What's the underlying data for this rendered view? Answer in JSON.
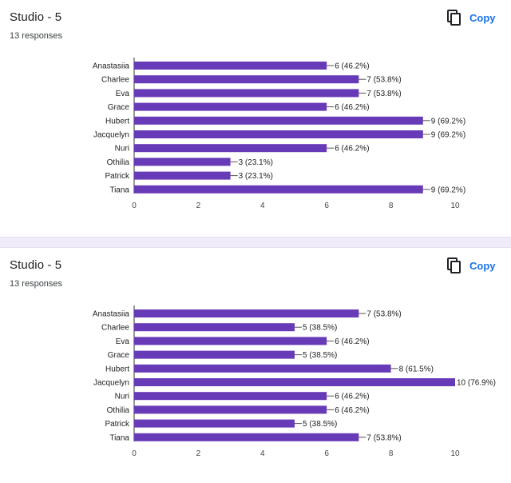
{
  "cards": [
    {
      "title": "Studio - 5",
      "responses": "13 responses",
      "copy_label": "Copy"
    },
    {
      "title": "Studio - 5",
      "responses": "13 responses",
      "copy_label": "Copy"
    }
  ],
  "colors": {
    "bar": "#673ab7",
    "link": "#1a73e8",
    "separator": "#f0ebf8",
    "gridline": "#cccccc"
  },
  "icons": {
    "copy": "copy-icon"
  },
  "chart_data": [
    {
      "type": "bar",
      "orientation": "horizontal",
      "title": "Studio - 5",
      "categories": [
        "Anastasiia",
        "Charlee",
        "Eva",
        "Grace",
        "Hubert",
        "Jacquelyn",
        "Nuri",
        "Othilia",
        "Patrick",
        "Tiana"
      ],
      "values": [
        6,
        7,
        7,
        6,
        9,
        9,
        6,
        3,
        3,
        9
      ],
      "data_labels": [
        "6 (46.2%)",
        "7 (53.8%)",
        "7 (53.8%)",
        "6 (46.2%)",
        "9 (69.2%)",
        "9 (69.2%)",
        "6 (46.2%)",
        "3 (23.1%)",
        "3 (23.1%)",
        "9 (69.2%)"
      ],
      "xlim": [
        0,
        10
      ],
      "xticks": [
        "0",
        "2",
        "4",
        "6",
        "8",
        "10"
      ],
      "grid": false
    },
    {
      "type": "bar",
      "orientation": "horizontal",
      "title": "Studio - 5",
      "categories": [
        "Anastasiia",
        "Charlee",
        "Eva",
        "Grace",
        "Hubert",
        "Jacquelyn",
        "Nuri",
        "Othilia",
        "Patrick",
        "Tiana"
      ],
      "values": [
        7,
        5,
        6,
        5,
        8,
        10,
        6,
        6,
        5,
        7
      ],
      "data_labels": [
        "7 (53.8%)",
        "5 (38.5%)",
        "6 (46.2%)",
        "5 (38.5%)",
        "8 (61.5%)",
        "10 (76.9%)",
        "6 (46.2%)",
        "6 (46.2%)",
        "5 (38.5%)",
        "7 (53.8%)"
      ],
      "xlim": [
        0,
        10
      ],
      "xticks": [
        "0",
        "2",
        "4",
        "6",
        "8",
        "10"
      ],
      "grid": false
    }
  ]
}
